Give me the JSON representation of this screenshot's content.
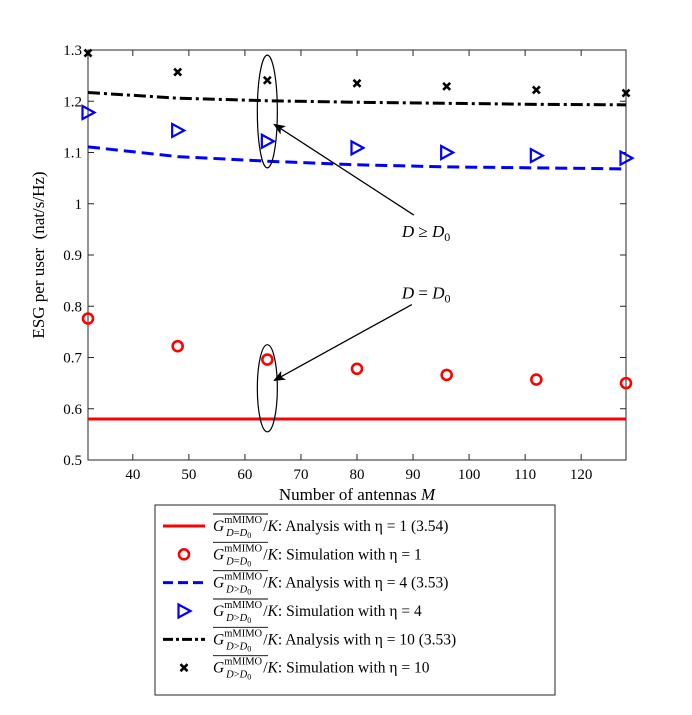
{
  "chart_data": {
    "type": "line",
    "title": "",
    "xlabel": "Number of antennas M",
    "ylabel": "ESG per user  (nat/s/Hz)",
    "xlim": [
      32,
      128
    ],
    "ylim": [
      0.5,
      1.3
    ],
    "xticks": [
      40,
      50,
      60,
      70,
      80,
      90,
      100,
      110,
      120
    ],
    "xtick_labels": [
      "40",
      "50",
      "60",
      "70",
      "80",
      "90",
      "100",
      "110",
      "120"
    ],
    "yticks": [
      0.5,
      0.6,
      0.7,
      0.8,
      0.9,
      1.0,
      1.1,
      1.2,
      1.3
    ],
    "ytick_labels": [
      "0.5",
      "0.6",
      "0.7",
      "0.8",
      "0.9",
      "1",
      "1.1",
      "1.2",
      "1.3"
    ],
    "grid": false,
    "legend_position": "below",
    "series": [
      {
        "name": "Analysis with η = 1 (3.54)",
        "label_math": "G^mMIMO_{D=D0}/K",
        "legend_suffix": ": Analysis with η = 1 (3.54)",
        "kind": "line",
        "style": "solid",
        "color": "#ff0000",
        "x": [
          32,
          48,
          64,
          80,
          96,
          112,
          128
        ],
        "y": [
          0.58,
          0.58,
          0.58,
          0.58,
          0.58,
          0.58,
          0.58
        ]
      },
      {
        "name": "Simulation with η = 1",
        "label_math": "G^mMIMO_{D=D0}/K",
        "legend_suffix": ": Simulation with η = 1",
        "kind": "marker",
        "marker": "circle",
        "color": "#ff0000",
        "x": [
          32,
          48,
          64,
          80,
          96,
          112,
          128
        ],
        "y": [
          0.776,
          0.722,
          0.696,
          0.678,
          0.666,
          0.657,
          0.65
        ]
      },
      {
        "name": "Analysis with η = 4 (3.53)",
        "label_math": "G^mMIMO_{D>D0}/K",
        "legend_suffix": ": Analysis with η = 4 (3.53)",
        "kind": "line",
        "style": "dashed",
        "color": "#0000ff",
        "x": [
          32,
          48,
          64,
          80,
          96,
          112,
          128
        ],
        "y": [
          1.111,
          1.092,
          1.083,
          1.076,
          1.072,
          1.07,
          1.068
        ]
      },
      {
        "name": "Simulation with η = 4",
        "label_math": "G^mMIMO_{D>D0}/K",
        "legend_suffix": ": Simulation with η = 4",
        "kind": "marker",
        "marker": "triangle-right",
        "color": "#0000ff",
        "x": [
          32,
          48,
          64,
          80,
          96,
          112,
          128
        ],
        "y": [
          1.178,
          1.143,
          1.122,
          1.109,
          1.1,
          1.094,
          1.089
        ]
      },
      {
        "name": "Analysis with η = 10 (3.53)",
        "label_math": "G^mMIMO_{D>D0}/K",
        "legend_suffix": ": Analysis with η = 10 (3.53)",
        "kind": "line",
        "style": "dashdot",
        "color": "#000000",
        "x": [
          32,
          48,
          64,
          80,
          96,
          112,
          128
        ],
        "y": [
          1.217,
          1.206,
          1.201,
          1.198,
          1.196,
          1.194,
          1.193
        ]
      },
      {
        "name": "Simulation with η = 10",
        "label_math": "G^mMIMO_{D>D0}/K",
        "legend_suffix": ": Simulation with η = 10",
        "kind": "marker",
        "marker": "x",
        "color": "#000000",
        "x": [
          32,
          48,
          64,
          80,
          96,
          112,
          128
        ],
        "y": [
          1.294,
          1.257,
          1.241,
          1.235,
          1.229,
          1.222,
          1.216
        ]
      }
    ],
    "annotations": [
      {
        "text": "D ≥ D0",
        "x_data": 88,
        "y_data": 0.935,
        "arrow_to": [
          65.2,
          1.155
        ],
        "ellipse_center": [
          64,
          1.18
        ],
        "ellipse_ry": 0.11
      },
      {
        "text": "D = D0",
        "x_data": 88,
        "y_data": 0.815,
        "arrow_to": [
          65.2,
          0.655
        ],
        "ellipse_center": [
          64,
          0.64
        ],
        "ellipse_ry": 0.085
      }
    ]
  }
}
